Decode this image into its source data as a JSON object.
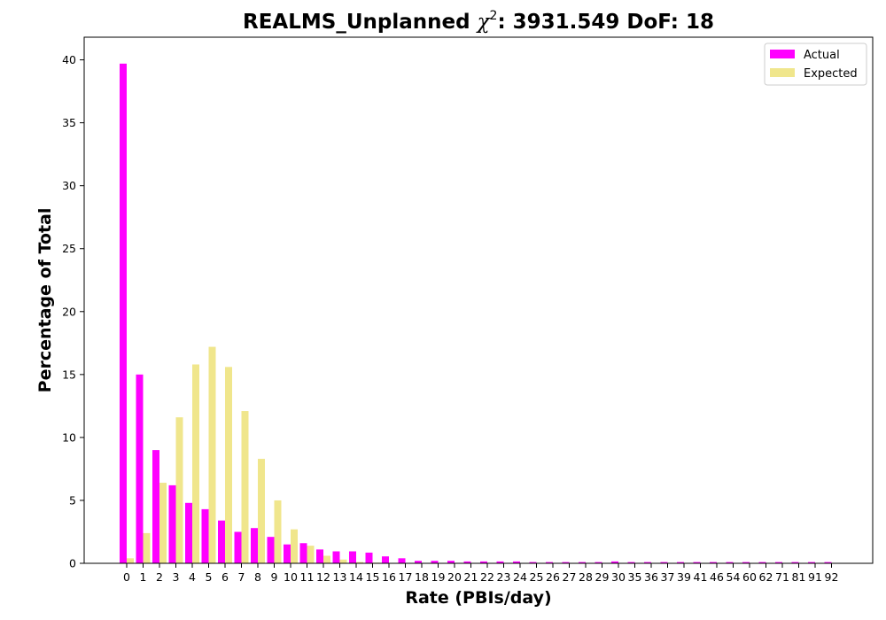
{
  "chart_data": {
    "type": "bar",
    "title": "REALMS_Unplanned χ²: 3931.549 DoF: 18",
    "title_parts": {
      "prefix": "REALMS_Unplanned ",
      "chi": "χ",
      "sup": "2",
      "suffix": ": 3931.549 DoF: 18"
    },
    "xlabel": "Rate (PBIs/day)",
    "ylabel": "Percentage of Total",
    "ylim": [
      0,
      41.8
    ],
    "yticks": [
      0,
      5,
      10,
      15,
      20,
      25,
      30,
      35,
      40
    ],
    "grid": false,
    "legend_position": "top-right",
    "categories": [
      "0",
      "1",
      "2",
      "3",
      "4",
      "5",
      "6",
      "7",
      "8",
      "9",
      "10",
      "11",
      "12",
      "13",
      "14",
      "15",
      "16",
      "17",
      "18",
      "19",
      "20",
      "21",
      "22",
      "23",
      "24",
      "25",
      "26",
      "27",
      "28",
      "29",
      "30",
      "35",
      "36",
      "37",
      "39",
      "41",
      "46",
      "54",
      "60",
      "62",
      "71",
      "81",
      "91",
      "92"
    ],
    "series": [
      {
        "name": "Actual",
        "color": "#ff00ff",
        "values": [
          39.7,
          15.0,
          9.0,
          6.2,
          4.8,
          4.3,
          3.4,
          2.5,
          2.8,
          2.1,
          1.5,
          1.6,
          1.1,
          0.95,
          0.95,
          0.85,
          0.55,
          0.4,
          0.2,
          0.2,
          0.2,
          0.15,
          0.15,
          0.15,
          0.15,
          0.1,
          0.1,
          0.1,
          0.1,
          0.1,
          0.15,
          0.1,
          0.1,
          0.1,
          0.1,
          0.1,
          0.1,
          0.1,
          0.1,
          0.1,
          0.1,
          0.1,
          0.1,
          0.1
        ]
      },
      {
        "name": "Expected",
        "color": "#f0e68c",
        "values": [
          0.4,
          2.4,
          6.4,
          11.6,
          15.8,
          17.2,
          15.6,
          12.1,
          8.3,
          5.0,
          2.7,
          1.4,
          0.6,
          0.3,
          0.1,
          0.05,
          0.02,
          0.01,
          0,
          0,
          0,
          0,
          0,
          0,
          0,
          0,
          0,
          0,
          0,
          0,
          0,
          0,
          0,
          0,
          0,
          0,
          0,
          0,
          0,
          0,
          0,
          0,
          0,
          0
        ]
      }
    ]
  }
}
